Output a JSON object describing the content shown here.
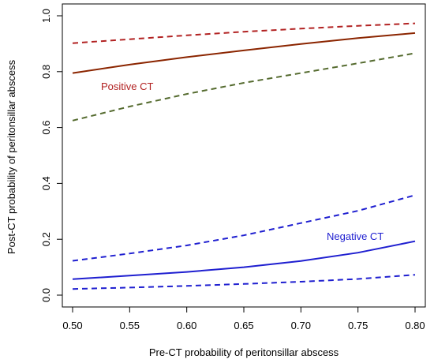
{
  "chart_data": {
    "type": "line",
    "title": "",
    "xlabel": "Pre-CT probability of peritonsillar abscess",
    "ylabel": "Post-CT probability of peritonsillar abscess",
    "xlim": [
      0.5,
      0.8
    ],
    "ylim": [
      0.0,
      1.0
    ],
    "x_ticks": [
      "0.50",
      "0.55",
      "0.60",
      "0.65",
      "0.70",
      "0.75",
      "0.80"
    ],
    "y_ticks": [
      "0.0",
      "0.2",
      "0.4",
      "0.6",
      "0.8",
      "1.0"
    ],
    "grid": false,
    "legend": "none",
    "annotations": [
      {
        "text": "Positive CT",
        "color": "#b22222"
      },
      {
        "text": "Negative CT",
        "color": "#1f1fd0"
      }
    ],
    "x": [
      0.5,
      0.55,
      0.6,
      0.65,
      0.7,
      0.75,
      0.8
    ],
    "series": [
      {
        "group": "positive",
        "style": "solid",
        "color": "#8b2500",
        "values": [
          0.795,
          0.825,
          0.852,
          0.876,
          0.899,
          0.92,
          0.938
        ]
      },
      {
        "group": "positive",
        "style": "dashed",
        "color": "#b22222",
        "values": [
          0.902,
          0.916,
          0.93,
          0.943,
          0.954,
          0.964,
          0.973
        ]
      },
      {
        "group": "positive",
        "style": "dashed",
        "color": "#556b2f",
        "values": [
          0.625,
          0.675,
          0.72,
          0.76,
          0.795,
          0.83,
          0.866
        ]
      },
      {
        "group": "negative",
        "style": "solid",
        "color": "#1f1fd0",
        "values": [
          0.057,
          0.07,
          0.083,
          0.1,
          0.122,
          0.152,
          0.193
        ]
      },
      {
        "group": "negative",
        "style": "dashed",
        "color": "#1f1fd0",
        "values": [
          0.123,
          0.149,
          0.178,
          0.214,
          0.258,
          0.302,
          0.358
        ]
      },
      {
        "group": "negative",
        "style": "dashed",
        "color": "#1f1fd0",
        "values": [
          0.022,
          0.027,
          0.033,
          0.04,
          0.048,
          0.058,
          0.073
        ]
      }
    ]
  }
}
